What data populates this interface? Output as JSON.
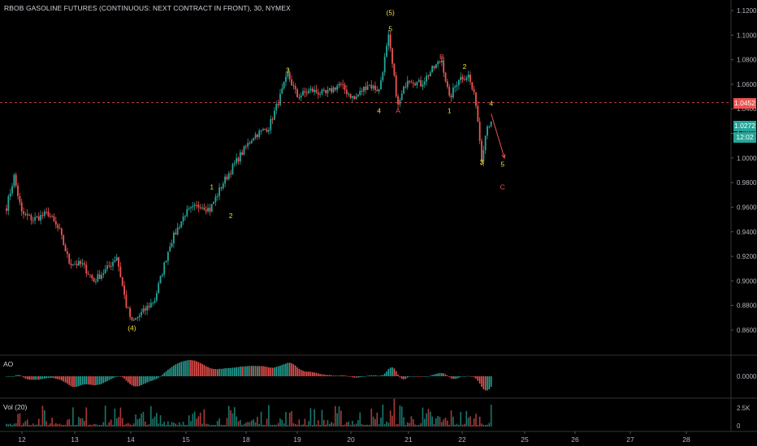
{
  "header": {
    "title": "RBOB GASOLINE FUTURES (CONTINUOUS: NEXT CONTRACT IN FRONT), 30, NYMEX"
  },
  "panes": {
    "ao_label": "AO",
    "vol_label": "Vol (20)"
  },
  "price_axis": {
    "ticks": [
      "1.1200",
      "1.1000",
      "1.0800",
      "1.0600",
      "1.0400",
      "1.0200",
      "1.0000",
      "0.9800",
      "0.9600",
      "0.9400",
      "0.9200",
      "0.9000",
      "0.8800",
      "0.8600"
    ],
    "ao_ticks": [
      "0.0000"
    ],
    "vol_ticks": [
      "2.5K",
      "0"
    ]
  },
  "badges": {
    "horizontal_line": "1.0452",
    "current_price": "1.0272",
    "countdown": "12:02"
  },
  "colors": {
    "up": "#26a69a",
    "down": "#ef5350",
    "ao_up": "#26a69a",
    "ao_down": "#ef5350",
    "wave_label": "#f5e02a",
    "abc_label": "#ef5350",
    "axis_text": "#b2b5be",
    "grid_sep": "#333",
    "hline": "#ef5350"
  },
  "chart_data": [
    {
      "type": "candlestick",
      "title": "RBOB GASOLINE FUTURES (CONTINUOUS: NEXT CONTRACT IN FRONT), 30, NYMEX",
      "x_ticks": [
        "12",
        "13",
        "14",
        "15",
        "18",
        "19",
        "20",
        "21",
        "22",
        "25",
        "26",
        "27",
        "28"
      ],
      "ylim": [
        0.848,
        1.128
      ],
      "price_path_anchors": [
        {
          "i": 0,
          "p": 0.96
        },
        {
          "i": 4,
          "p": 0.985
        },
        {
          "i": 8,
          "p": 0.955
        },
        {
          "i": 14,
          "p": 0.95
        },
        {
          "i": 22,
          "p": 0.955
        },
        {
          "i": 28,
          "p": 0.94
        },
        {
          "i": 33,
          "p": 0.915
        },
        {
          "i": 40,
          "p": 0.913
        },
        {
          "i": 46,
          "p": 0.9
        },
        {
          "i": 53,
          "p": 0.91
        },
        {
          "i": 58,
          "p": 0.92
        },
        {
          "i": 63,
          "p": 0.88
        },
        {
          "i": 66,
          "p": 0.866
        },
        {
          "i": 72,
          "p": 0.875
        },
        {
          "i": 78,
          "p": 0.885
        },
        {
          "i": 86,
          "p": 0.93
        },
        {
          "i": 94,
          "p": 0.955
        },
        {
          "i": 102,
          "p": 0.962
        },
        {
          "i": 107,
          "p": 0.958
        },
        {
          "i": 114,
          "p": 0.98
        },
        {
          "i": 122,
          "p": 1.0
        },
        {
          "i": 130,
          "p": 1.018
        },
        {
          "i": 138,
          "p": 1.025
        },
        {
          "i": 144,
          "p": 1.05
        },
        {
          "i": 148,
          "p": 1.068
        },
        {
          "i": 153,
          "p": 1.05
        },
        {
          "i": 160,
          "p": 1.055
        },
        {
          "i": 168,
          "p": 1.052
        },
        {
          "i": 175,
          "p": 1.06
        },
        {
          "i": 183,
          "p": 1.048
        },
        {
          "i": 190,
          "p": 1.06
        },
        {
          "i": 196,
          "p": 1.055
        },
        {
          "i": 201,
          "p": 1.098
        },
        {
          "i": 206,
          "p": 1.042
        },
        {
          "i": 211,
          "p": 1.065
        },
        {
          "i": 218,
          "p": 1.06
        },
        {
          "i": 224,
          "p": 1.072
        },
        {
          "i": 229,
          "p": 1.08
        },
        {
          "i": 233,
          "p": 1.048
        },
        {
          "i": 238,
          "p": 1.065
        },
        {
          "i": 243,
          "p": 1.067
        },
        {
          "i": 247,
          "p": 1.045
        },
        {
          "i": 250,
          "p": 1.0
        },
        {
          "i": 253,
          "p": 1.028
        },
        {
          "i": 255,
          "p": 1.027
        }
      ],
      "horizontal_line": 1.0452,
      "last_price": 1.0272,
      "wave_labels": [
        {
          "text": "(4)",
          "i": 66,
          "p": 0.8615,
          "color": "yellow",
          "pos": "below"
        },
        {
          "text": "1",
          "i": 108,
          "p": 0.9765,
          "color": "yellow",
          "pos": "above"
        },
        {
          "text": "2",
          "i": 118,
          "p": 0.953,
          "color": "yellow",
          "pos": "below"
        },
        {
          "text": "3",
          "i": 148,
          "p": 1.0715,
          "color": "yellow",
          "pos": "above"
        },
        {
          "text": "4",
          "i": 196,
          "p": 1.0385,
          "color": "yellow",
          "pos": "below"
        },
        {
          "text": "(5)",
          "i": 202,
          "p": 1.1185,
          "color": "yellow",
          "pos": "above"
        },
        {
          "text": "5",
          "i": 202,
          "p": 1.105,
          "color": "yellow",
          "pos": "above"
        },
        {
          "text": "A",
          "i": 206,
          "p": 1.0385,
          "color": "red",
          "pos": "below"
        },
        {
          "text": "B",
          "i": 229,
          "p": 1.0825,
          "color": "red",
          "pos": "above"
        },
        {
          "text": "1",
          "i": 233,
          "p": 1.0385,
          "color": "yellow",
          "pos": "below"
        },
        {
          "text": "2",
          "i": 241,
          "p": 1.0745,
          "color": "yellow",
          "pos": "above"
        },
        {
          "text": "3",
          "i": 250,
          "p": 0.9965,
          "color": "yellow",
          "pos": "below"
        },
        {
          "text": "4",
          "i": 255,
          "p": 1.0445,
          "color": "yellow",
          "pos": "above"
        },
        {
          "text": "5",
          "i": 261,
          "p": 0.995,
          "color": "yellow",
          "pos": "below"
        },
        {
          "text": "C",
          "i": 261,
          "p": 0.9765,
          "color": "red",
          "pos": "below"
        }
      ],
      "projection_arrow": {
        "from": {
          "i": 255,
          "p": 1.036
        },
        "to": {
          "i": 262,
          "p": 1.0
        }
      }
    },
    {
      "type": "bar",
      "title": "AO",
      "ylim": [
        -0.04,
        0.04
      ],
      "ticks": [
        "0.0000"
      ]
    },
    {
      "type": "bar",
      "title": "Vol (20)",
      "ylim": [
        0,
        3000
      ],
      "ticks": [
        "2.5K",
        "0"
      ]
    }
  ]
}
